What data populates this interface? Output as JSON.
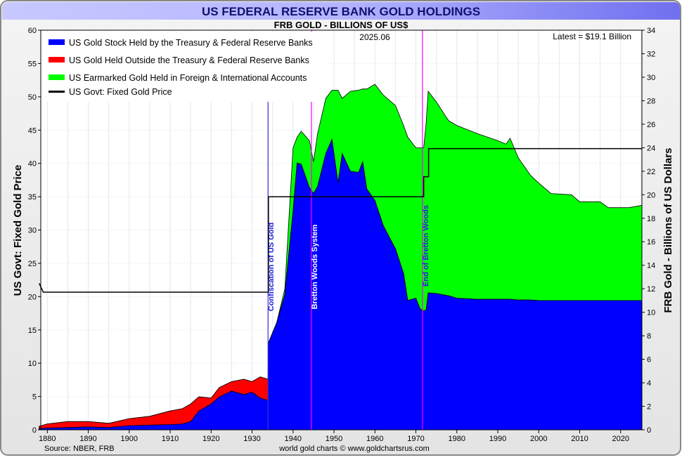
{
  "chart_data": {
    "type": "area",
    "title": "US FEDERAL RESERVE BANK GOLD HOLDINGS",
    "subtitle": "FRB GOLD - BILLIONS OF US$",
    "date_label": "2025.06",
    "latest_label": "Latest = $19.1 Billion",
    "ylabel_left": "US Govt: Fixed Gold Price",
    "ylabel_right": "FRB Gold - Billions of US Dollars",
    "source": "Source: NBER, FRB",
    "credit": "world gold charts © www.goldchartsrus.com",
    "xlim": [
      1878.4,
      2025.2
    ],
    "ylim_left": [
      0,
      60
    ],
    "ylim_right": [
      0,
      34
    ],
    "x_ticks": [
      1880,
      1890,
      1900,
      1910,
      1920,
      1930,
      1940,
      1950,
      1960,
      1970,
      1980,
      1990,
      2000,
      2010,
      2020
    ],
    "y_ticks_left": [
      0,
      5,
      10,
      15,
      20,
      25,
      30,
      35,
      40,
      45,
      50,
      55,
      60
    ],
    "y_ticks_right": [
      0,
      2,
      4,
      6,
      8,
      10,
      12,
      14,
      16,
      18,
      20,
      22,
      24,
      26,
      28,
      30,
      32,
      34
    ],
    "legend_position": "top-left",
    "colors": {
      "blue": "#0000ff",
      "red": "#ff0000",
      "green": "#00ff00",
      "price": "#000000",
      "event": "#ff00ff"
    },
    "years": [
      1878,
      1880,
      1885,
      1890,
      1895,
      1900,
      1905,
      1910,
      1913,
      1915,
      1917,
      1920,
      1922,
      1925,
      1928,
      1930,
      1932,
      1933.9,
      1934,
      1936,
      1938,
      1940,
      1941,
      1942,
      1944,
      1945,
      1946,
      1948,
      1949.5,
      1951,
      1952,
      1954,
      1956,
      1957,
      1958,
      1960,
      1962,
      1965,
      1967,
      1968,
      1970,
      1971,
      1971.9,
      1972.5,
      1973,
      1975,
      1978,
      1980,
      1985,
      1990,
      1992,
      1993,
      1995,
      1998,
      2000,
      2003,
      2008,
      2010,
      2015,
      2017,
      2022,
      2025.2
    ],
    "series": [
      {
        "name": "US Gold Stock Held by the Treasury & Federal Reserve Banks",
        "color": "#0000ff",
        "axis": "right",
        "values": [
          0.1,
          0.15,
          0.2,
          0.25,
          0.2,
          0.35,
          0.4,
          0.45,
          0.5,
          0.7,
          1.6,
          2.2,
          2.8,
          3.3,
          3.0,
          3.2,
          2.7,
          2.5,
          7.4,
          9.1,
          11.5,
          18.6,
          22.7,
          22.6,
          20.6,
          20.1,
          20.7,
          23.5,
          24.7,
          21.0,
          23.5,
          22.0,
          21.9,
          22.8,
          20.5,
          19.5,
          17.4,
          15.4,
          13.3,
          11.0,
          11.2,
          10.3,
          10.1,
          10.2,
          11.65,
          11.6,
          11.4,
          11.2,
          11.1,
          11.1,
          11.1,
          11.1,
          11.05,
          11.05,
          11.0,
          11.0,
          11.0,
          11.0,
          11.0,
          11.0,
          11.0,
          11.0
        ]
      },
      {
        "name": "US Gold Held Outside the Treasury & Federal Reserve Banks",
        "color": "#ff0000",
        "axis": "right",
        "values": [
          0.2,
          0.35,
          0.5,
          0.45,
          0.35,
          0.6,
          0.75,
          1.15,
          1.3,
          1.5,
          1.2,
          0.5,
          0.8,
          0.8,
          1.3,
          0.9,
          1.8,
          1.8,
          0,
          0,
          0,
          0,
          0,
          0,
          0,
          0,
          0,
          0,
          0,
          0,
          0,
          0,
          0,
          0,
          0,
          0,
          0,
          0,
          0,
          0,
          0,
          0,
          0,
          0,
          0,
          0,
          0,
          0,
          0,
          0,
          0,
          0,
          0,
          0,
          0,
          0,
          0,
          0,
          0,
          0,
          0,
          0
        ]
      },
      {
        "name": "US Earmarked Gold Held in Foreign & International Accounts",
        "color": "#00ff00",
        "axis": "right",
        "values": [
          0,
          0,
          0,
          0,
          0,
          0,
          0,
          0,
          0,
          0,
          0,
          0,
          0,
          0,
          0,
          0,
          0,
          0,
          0,
          0,
          0.5,
          5.4,
          2.2,
          2.8,
          4.0,
          2.7,
          4.5,
          4.7,
          4.2,
          7.9,
          4.7,
          6.8,
          7.0,
          6.2,
          8.5,
          9.9,
          11.1,
          12.2,
          12.6,
          13.9,
          12.8,
          13.7,
          13.9,
          15.9,
          17.15,
          16.3,
          14.9,
          14.7,
          14.1,
          13.5,
          13.2,
          13.7,
          12.1,
          10.6,
          10.0,
          9.1,
          9.0,
          8.4,
          8.4,
          7.9,
          7.9,
          8.1
        ]
      },
      {
        "name": "US Govt: Fixed Gold Price",
        "color": "#000000",
        "axis": "left",
        "points": [
          [
            1878,
            22
          ],
          [
            1879,
            20.67
          ],
          [
            1934,
            20.67
          ],
          [
            1934,
            35
          ],
          [
            1971.9,
            35
          ],
          [
            1971.9,
            38
          ],
          [
            1973.1,
            38
          ],
          [
            1973.1,
            42.22
          ],
          [
            2025.2,
            42.22
          ]
        ]
      }
    ],
    "events": [
      {
        "year": 1933.9,
        "label": "Confiscation of US Gold",
        "color": "#3333cc"
      },
      {
        "year": 1944.5,
        "label": "Bretton Woods System",
        "color": "#ff00ff"
      },
      {
        "year": 1971.6,
        "label": "End of Bretton Woods",
        "color": "#ff00ff"
      }
    ]
  }
}
